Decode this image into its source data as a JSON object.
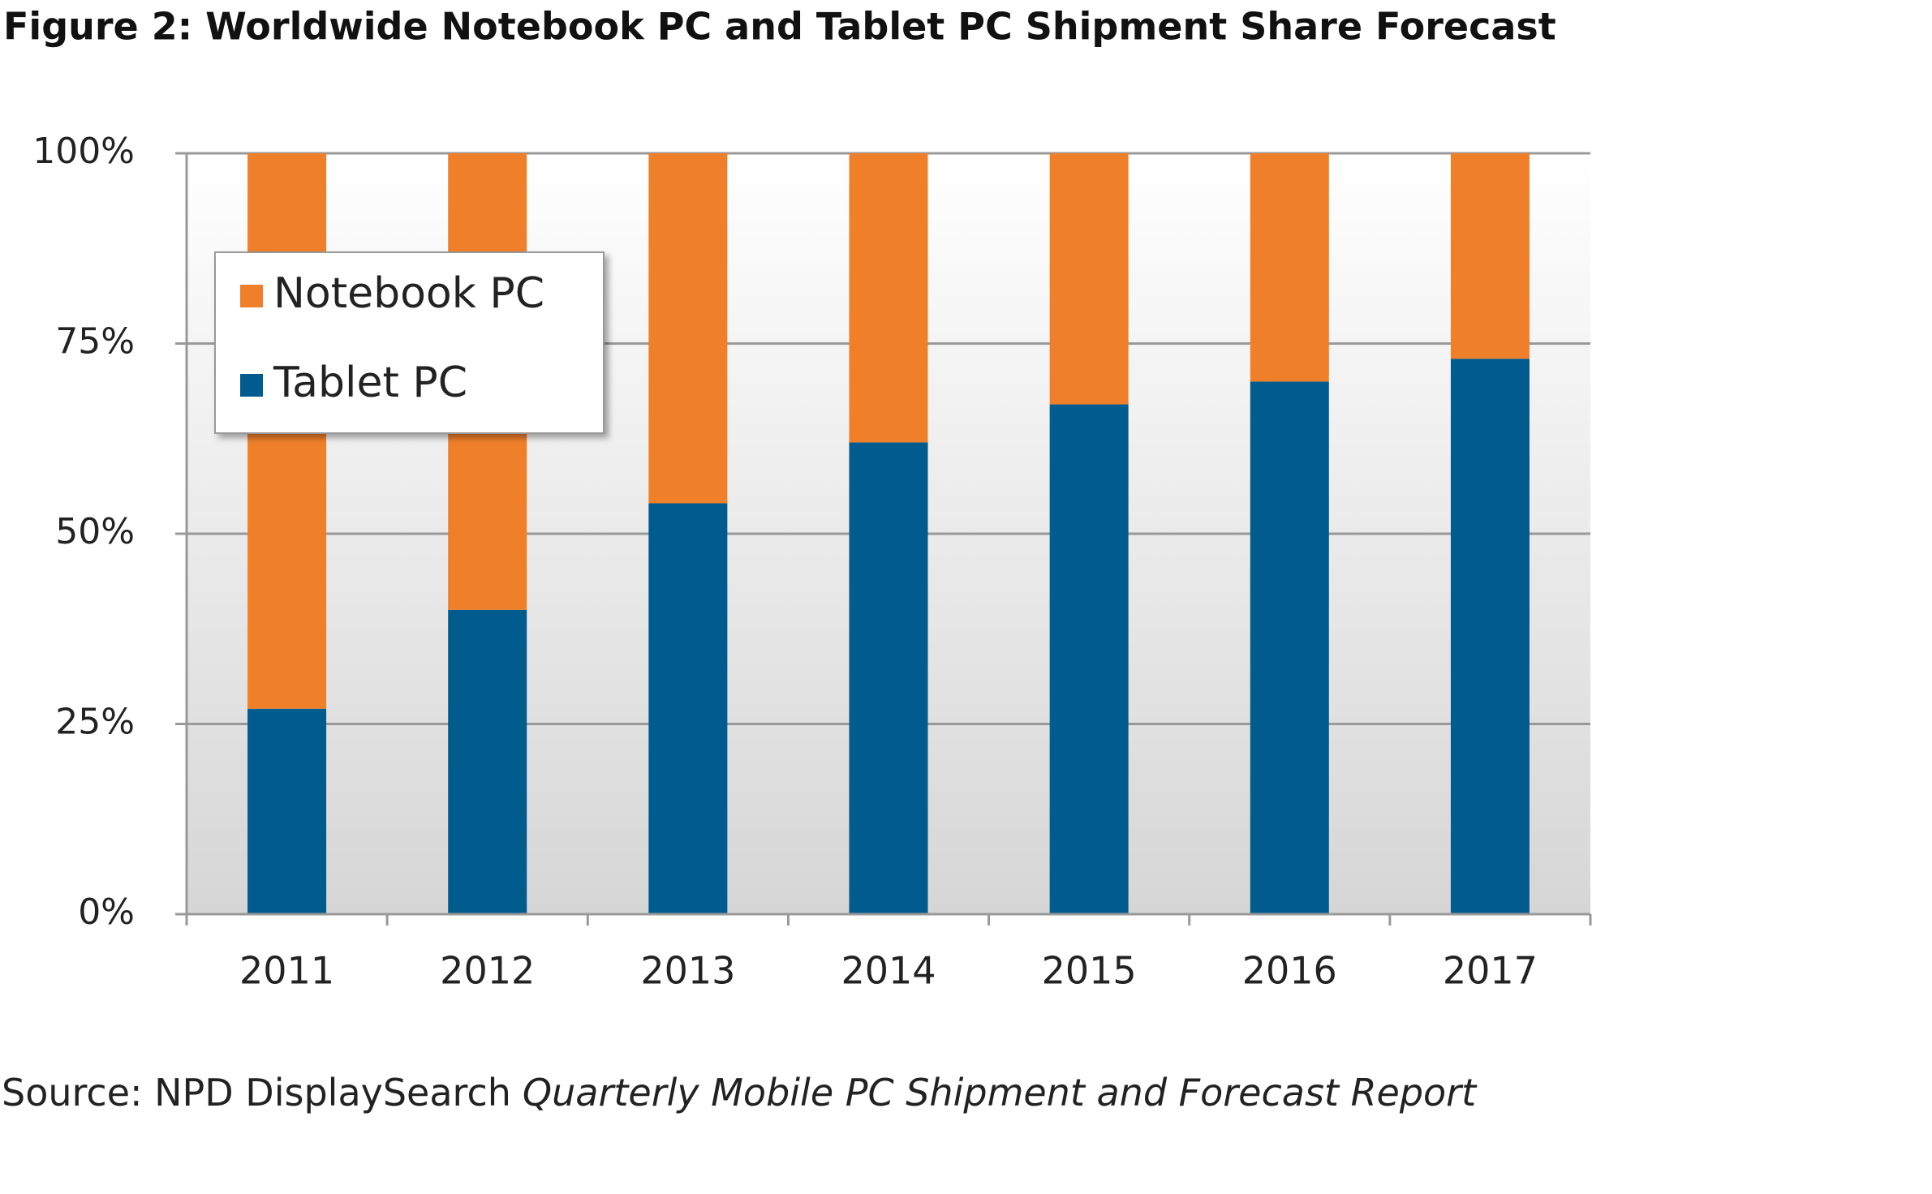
{
  "chart_data": {
    "type": "stacked_bar",
    "title": "Figure 2: Worldwide Notebook PC and Tablet PC Shipment Share Forecast",
    "source": "Source: NPD DisplaySearch",
    "source_report": "Quarterly Mobile PC Shipment and Forecast Report",
    "categories": [
      "2011",
      "2012",
      "2013",
      "2014",
      "2015",
      "2016",
      "2017"
    ],
    "series": [
      {
        "name": "Tablet PC",
        "color": "#005b8f",
        "values": [
          27,
          40,
          54,
          62,
          67,
          70,
          73
        ]
      },
      {
        "name": "Notebook PC",
        "color": "#f07f2a",
        "values": [
          73,
          60,
          46,
          38,
          33,
          30,
          27
        ]
      }
    ],
    "ylim": [
      0,
      100
    ],
    "yticks": [
      {
        "value": 0,
        "label": "0%"
      },
      {
        "value": 25,
        "label": "25%"
      },
      {
        "value": 50,
        "label": "50%"
      },
      {
        "value": 75,
        "label": "75%"
      },
      {
        "value": 100,
        "label": "100%"
      }
    ],
    "grid": true
  }
}
